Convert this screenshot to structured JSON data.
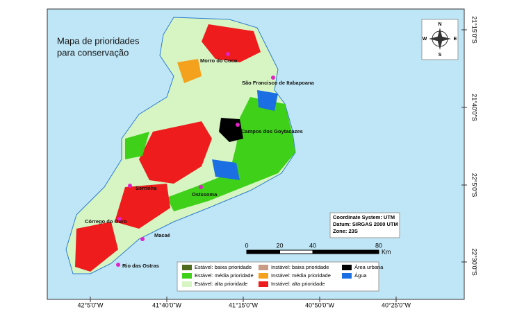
{
  "title": [
    "Mapa de prioridades",
    "para conservação"
  ],
  "lat_labels": [
    "21°15'0\"S",
    "21°40'0\"S",
    "22°5'0\"S",
    "22°30'0\"S"
  ],
  "lon_labels": [
    "42°5'0\"W",
    "41°40'0\"W",
    "41°15'0\"W",
    "40°50'0\"W",
    "40°25'0\"W"
  ],
  "towns": [
    "Morro do Coco",
    "São Francisco de Itabapoana",
    "Campos dos Goytacazes",
    "Serrinha",
    "Ostssoma",
    "Córrego do Ouro",
    "Macaé",
    "Rio das Ostras"
  ],
  "info": [
    "Coordinate System: UTM",
    "Datum: SIRGAS 2000 UTM",
    "Zone: 23S"
  ],
  "scale": {
    "ticks": [
      0,
      20,
      40,
      80
    ],
    "unit": "Km"
  },
  "compass": {
    "n": "N",
    "s": "S",
    "e": "E",
    "w": "W"
  },
  "legend": [
    {
      "label": "Estável: baixa prioridade",
      "color": "#4f6b1c"
    },
    {
      "label": "Estável: média prioridade",
      "color": "#3fd11a"
    },
    {
      "label": "Estável: alta prioridade",
      "color": "#d6f5c2"
    },
    {
      "label": "Instável: baixa prioridade",
      "color": "#c99a84"
    },
    {
      "label": "Instável: média prioridade",
      "color": "#f4a21e"
    },
    {
      "label": "Instável: alta prioridade",
      "color": "#ee1c1c"
    },
    {
      "label": "Área urbana",
      "color": "#000000"
    },
    {
      "label": "Água",
      "color": "#1b6fe3"
    }
  ]
}
